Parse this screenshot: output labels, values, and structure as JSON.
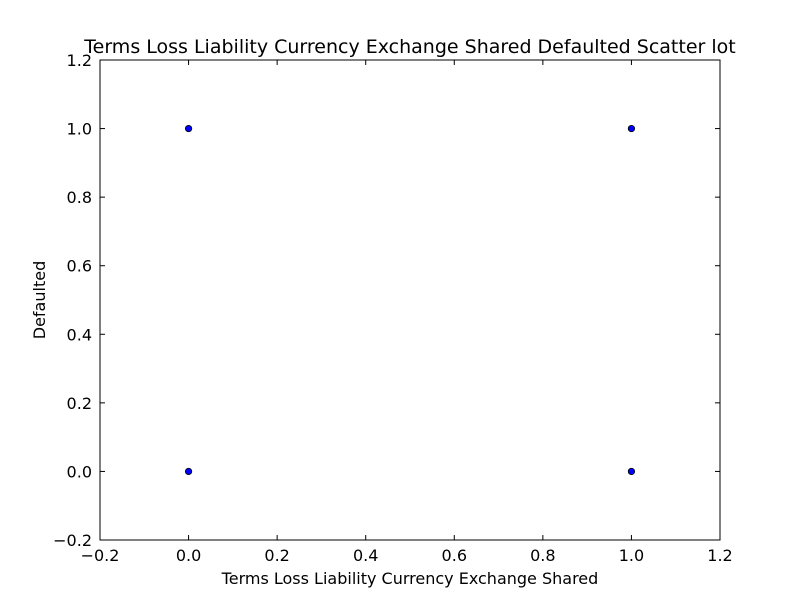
{
  "chart_data": {
    "type": "scatter",
    "title": "Terms Loss Liability Currency Exchange Shared Defaulted Scatter lot",
    "xlabel": "Terms Loss Liability Currency Exchange Shared",
    "ylabel": "Defaulted",
    "xlim": [
      -0.2,
      1.2
    ],
    "ylim": [
      -0.2,
      1.2
    ],
    "x_ticks": [
      -0.2,
      0.0,
      0.2,
      0.4,
      0.6,
      0.8,
      1.0,
      1.2
    ],
    "x_tick_labels": [
      "−0.2",
      "0.0",
      "0.2",
      "0.4",
      "0.6",
      "0.8",
      "1.0",
      "1.2"
    ],
    "y_ticks": [
      -0.2,
      0.0,
      0.2,
      0.4,
      0.6,
      0.8,
      1.0,
      1.2
    ],
    "y_tick_labels": [
      "−0.2",
      "0.0",
      "0.2",
      "0.4",
      "0.6",
      "0.8",
      "1.0",
      "1.2"
    ],
    "grid": false,
    "series": [
      {
        "points": [
          {
            "x": 0.0,
            "y": 1.0
          },
          {
            "x": 1.0,
            "y": 1.0
          },
          {
            "x": 0.0,
            "y": 0.0
          },
          {
            "x": 1.0,
            "y": 0.0
          }
        ],
        "color": "#0000ff"
      }
    ]
  }
}
